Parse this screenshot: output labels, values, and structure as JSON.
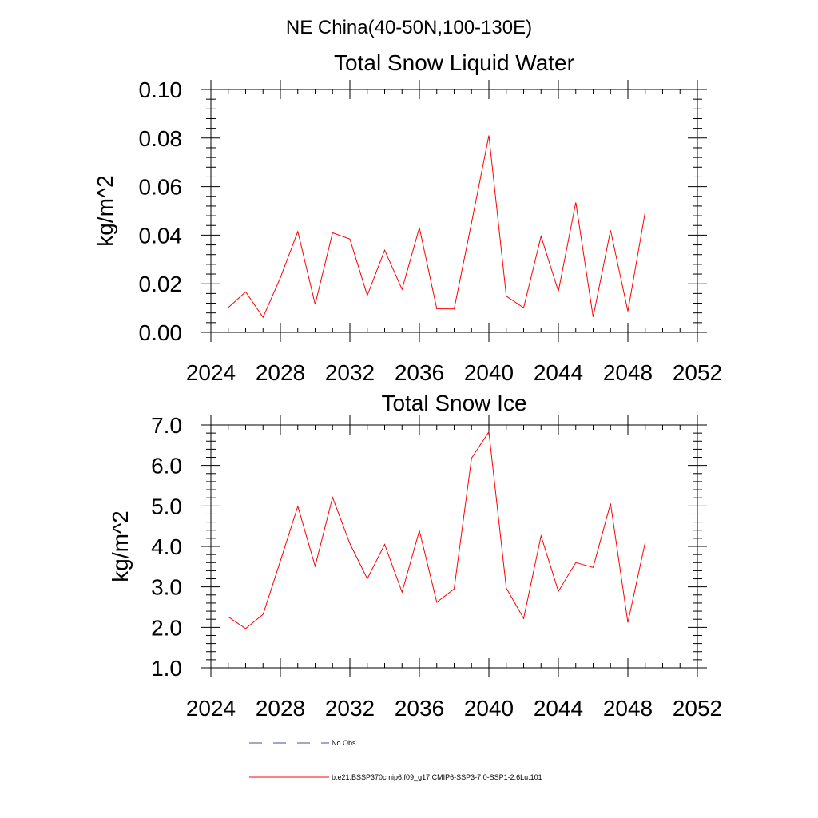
{
  "title": "NE China(40-50N,100-130E)",
  "chart_data": [
    {
      "type": "line",
      "title": "Total Snow Liquid Water",
      "ylabel": "kg/m^2",
      "xlim": [
        2024,
        2052
      ],
      "ylim": [
        0.0,
        0.1
      ],
      "xticks": [
        "2024",
        "2028",
        "2032",
        "2036",
        "2040",
        "2044",
        "2048",
        "2052"
      ],
      "yticks": [
        "0.00",
        "0.02",
        "0.04",
        "0.06",
        "0.08",
        "0.10"
      ],
      "x": [
        2025,
        2026,
        2027,
        2028,
        2029,
        2030,
        2031,
        2032,
        2033,
        2034,
        2035,
        2036,
        2037,
        2038,
        2039,
        2040,
        2041,
        2042,
        2043,
        2044,
        2045,
        2046,
        2047,
        2048,
        2049
      ],
      "series": [
        {
          "name": "b.e21.BSSP370cmip6.f09_g17.CMIP6-SSP3-7.0-SSP1-2.6Lu.101",
          "color": "#ff0000",
          "values": [
            0.0102,
            0.0167,
            0.0062,
            0.0225,
            0.0415,
            0.0115,
            0.041,
            0.0384,
            0.0152,
            0.0338,
            0.0177,
            0.0431,
            0.0097,
            0.0096,
            0.0451,
            0.0811,
            0.0149,
            0.0101,
            0.0395,
            0.0169,
            0.0535,
            0.0063,
            0.042,
            0.0087,
            0.0498
          ]
        }
      ],
      "grid": false
    },
    {
      "type": "line",
      "title": "Total Snow Ice",
      "ylabel": "kg/m^2",
      "xlim": [
        2024,
        2052
      ],
      "ylim": [
        1.0,
        7.0
      ],
      "xticks": [
        "2024",
        "2028",
        "2032",
        "2036",
        "2040",
        "2044",
        "2048",
        "2052"
      ],
      "yticks": [
        "1.0",
        "2.0",
        "3.0",
        "4.0",
        "5.0",
        "6.0",
        "7.0"
      ],
      "x": [
        2025,
        2026,
        2027,
        2028,
        2029,
        2030,
        2031,
        2032,
        2033,
        2034,
        2035,
        2036,
        2037,
        2038,
        2039,
        2040,
        2041,
        2042,
        2043,
        2044,
        2045,
        2046,
        2047,
        2048,
        2049
      ],
      "series": [
        {
          "name": "b.e21.BSSP370cmip6.f09_g17.CMIP6-SSP3-7.0-SSP1-2.6Lu.101",
          "color": "#ff0000",
          "values": [
            2.26,
            1.97,
            2.32,
            3.64,
            4.99,
            3.51,
            5.21,
            4.07,
            3.2,
            4.05,
            2.87,
            4.39,
            2.62,
            2.95,
            6.18,
            6.83,
            2.97,
            2.22,
            4.26,
            2.89,
            3.6,
            3.48,
            5.06,
            2.12,
            4.11
          ]
        }
      ],
      "grid": false
    }
  ],
  "legend": {
    "placement": "bottom",
    "entries": [
      {
        "label": "No Obs",
        "color": "#4a4aa0",
        "style": "dashed"
      },
      {
        "label": "b.e21.BSSP370cmip6.f09_g17.CMIP6-SSP3-7.0-SSP1-2.6Lu.101",
        "color": "#ff0000",
        "style": "solid"
      }
    ]
  }
}
